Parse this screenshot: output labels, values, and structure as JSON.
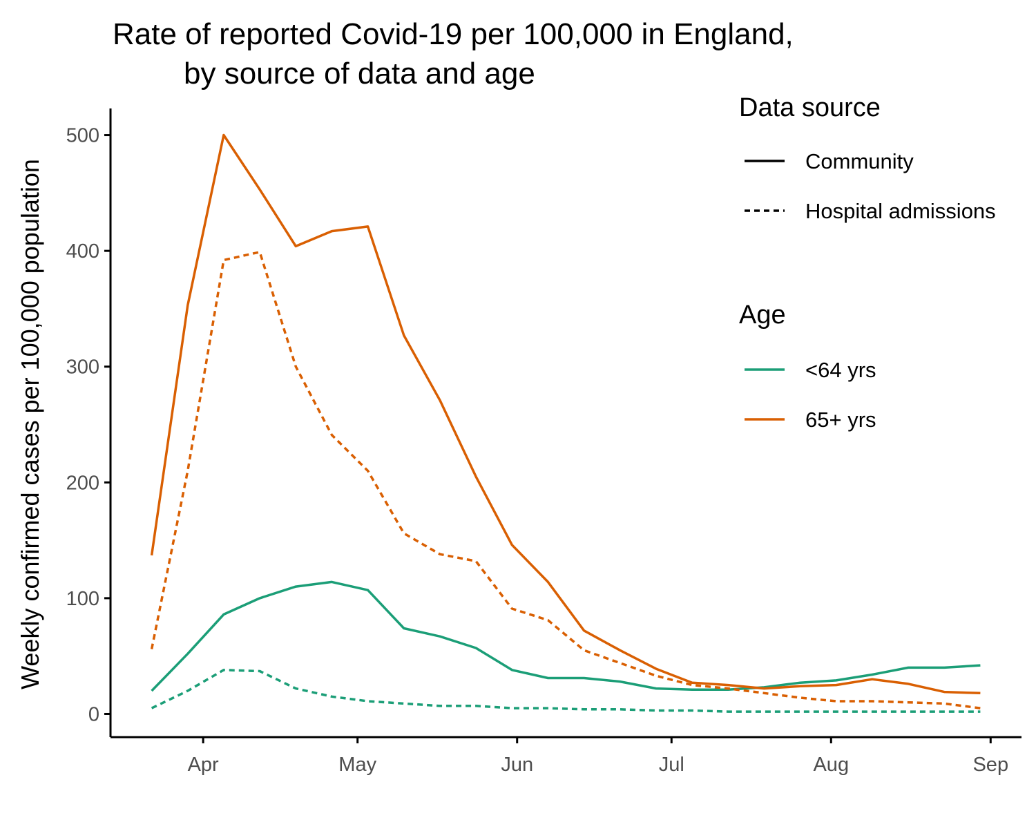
{
  "chart_data": {
    "type": "line",
    "title_lines": [
      "Rate of reported Covid-19 per 100,000 in England,",
      "by source of data and age"
    ],
    "xlabel": "",
    "ylabel": "Weekly confirmed cases per 100,000 population",
    "ylim": [
      -20,
      523
    ],
    "yticks": [
      0,
      100,
      200,
      300,
      400,
      500
    ],
    "xlim": [
      "2020-03-14",
      "2020-09-07"
    ],
    "xticks": [
      {
        "date": "2020-04-01",
        "label": "Apr"
      },
      {
        "date": "2020-05-01",
        "label": "May"
      },
      {
        "date": "2020-06-01",
        "label": "Jun"
      },
      {
        "date": "2020-07-01",
        "label": "Jul"
      },
      {
        "date": "2020-08-01",
        "label": "Aug"
      },
      {
        "date": "2020-09-01",
        "label": "Sep"
      }
    ],
    "grid": false,
    "x": [
      "2020-03-22",
      "2020-03-29",
      "2020-04-05",
      "2020-04-12",
      "2020-04-19",
      "2020-04-26",
      "2020-05-03",
      "2020-05-10",
      "2020-05-17",
      "2020-05-24",
      "2020-05-31",
      "2020-06-07",
      "2020-06-14",
      "2020-06-21",
      "2020-06-28",
      "2020-07-05",
      "2020-07-12",
      "2020-07-19",
      "2020-07-26",
      "2020-08-02",
      "2020-08-09",
      "2020-08-16",
      "2020-08-23",
      "2020-08-30"
    ],
    "series": [
      {
        "source": "Community",
        "age": "<64 yrs",
        "color": "#1b9e77",
        "dash": "solid",
        "values": [
          20,
          52,
          86,
          100,
          110,
          114,
          107,
          74,
          67,
          57,
          38,
          31,
          31,
          28,
          22,
          21,
          21,
          23,
          27,
          29,
          34,
          40,
          40,
          42
        ]
      },
      {
        "source": "Hospital admissions",
        "age": "<64 yrs",
        "color": "#1b9e77",
        "dash": "dotted",
        "values": [
          5,
          20,
          38,
          37,
          22,
          15,
          11,
          9,
          7,
          7,
          5,
          5,
          4,
          4,
          3,
          3,
          2,
          2,
          2,
          2,
          2,
          2,
          2,
          2
        ]
      },
      {
        "source": "Community",
        "age": "65+ yrs",
        "color": "#d95f02",
        "dash": "solid",
        "values": [
          137,
          353,
          500,
          453,
          404,
          417,
          421,
          327,
          271,
          205,
          146,
          114,
          72,
          55,
          39,
          27,
          25,
          22,
          24,
          25,
          30,
          26,
          19,
          18
        ]
      },
      {
        "source": "Hospital admissions",
        "age": "65+ yrs",
        "color": "#d95f02",
        "dash": "dotted",
        "values": [
          56,
          210,
          392,
          399,
          300,
          241,
          210,
          156,
          138,
          132,
          91,
          81,
          55,
          44,
          33,
          25,
          22,
          18,
          14,
          11,
          11,
          10,
          9,
          5
        ]
      }
    ],
    "legend_placement": "right",
    "legends": [
      {
        "title": "Data source",
        "items": [
          {
            "label": "Community",
            "dash": "solid",
            "color": "#000000"
          },
          {
            "label": "Hospital admissions",
            "dash": "dotted",
            "color": "#000000"
          }
        ]
      },
      {
        "title": "Age",
        "items": [
          {
            "label": "<64 yrs",
            "dash": "solid",
            "color": "#1b9e77"
          },
          {
            "label": "65+ yrs",
            "dash": "solid",
            "color": "#d95f02"
          }
        ]
      }
    ]
  }
}
